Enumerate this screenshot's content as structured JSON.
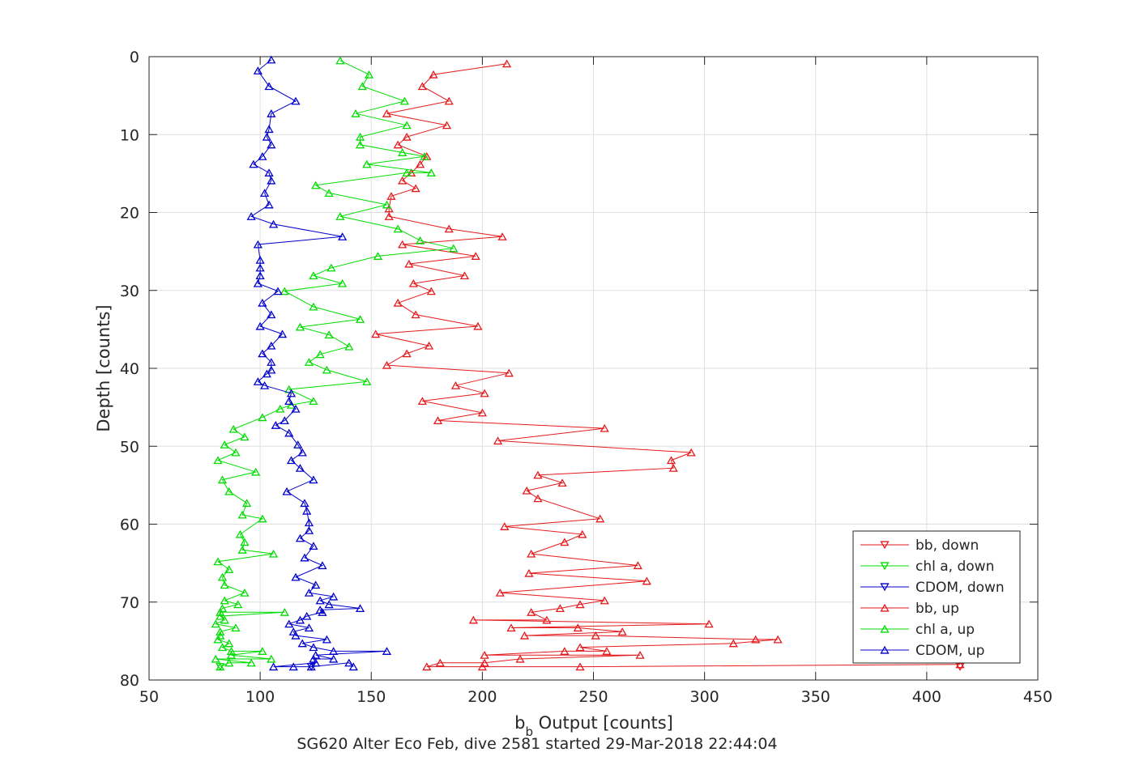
{
  "chart_data": {
    "type": "line",
    "title": "SG620 Alter Eco Feb, dive 2581 started 29-Mar-2018 22:44:04",
    "xlabel_main": "b",
    "xlabel_sub": "b",
    "xlabel_rest": " Output [counts]",
    "ylabel": "Depth [counts]",
    "xlim": [
      50,
      450
    ],
    "ylim": [
      0,
      80
    ],
    "y_reversed": true,
    "grid": true,
    "legend_position": "lower-right",
    "xticks": [
      "50",
      "100",
      "150",
      "200",
      "250",
      "300",
      "350",
      "400",
      "450"
    ],
    "yticks": [
      "0",
      "10",
      "20",
      "30",
      "40",
      "50",
      "60",
      "70",
      "80"
    ],
    "series": [
      {
        "name": "bb, down",
        "color": "#e41a1c",
        "marker": "triangle-down",
        "points": [
          [
            415,
            78.3
          ]
        ]
      },
      {
        "name": "chl a, down",
        "color": "#00dd00",
        "marker": "triangle-down",
        "points": [
          [
            82,
            78.3
          ]
        ]
      },
      {
        "name": "CDOM, down",
        "color": "#0000cc",
        "marker": "triangle-down",
        "points": [
          [
            123,
            78.3
          ]
        ]
      },
      {
        "name": "bb, up",
        "color": "#e41a1c",
        "marker": "triangle-up",
        "points": [
          [
            415,
            78.0
          ],
          [
            244,
            78.3
          ],
          [
            200,
            78.3
          ],
          [
            175,
            78.3
          ],
          [
            181,
            77.8
          ],
          [
            201,
            77.8
          ],
          [
            217,
            77.3
          ],
          [
            271,
            76.8
          ],
          [
            201,
            76.8
          ],
          [
            237,
            76.3
          ],
          [
            256,
            76.3
          ],
          [
            244,
            75.8
          ],
          [
            313,
            75.3
          ],
          [
            333,
            74.8
          ],
          [
            323,
            74.8
          ],
          [
            251,
            74.3
          ],
          [
            219,
            74.3
          ],
          [
            263,
            73.8
          ],
          [
            243,
            73.3
          ],
          [
            213,
            73.3
          ],
          [
            302,
            72.8
          ],
          [
            196,
            72.3
          ],
          [
            229,
            72.3
          ],
          [
            222,
            71.3
          ],
          [
            235,
            70.8
          ],
          [
            244,
            70.3
          ],
          [
            255,
            69.8
          ],
          [
            208,
            68.8
          ],
          [
            274,
            67.3
          ],
          [
            221,
            66.3
          ],
          [
            270,
            65.3
          ],
          [
            222,
            63.8
          ],
          [
            237,
            62.3
          ],
          [
            245,
            61.3
          ],
          [
            210,
            60.3
          ],
          [
            253,
            59.3
          ],
          [
            225,
            56.7
          ],
          [
            220,
            55.7
          ],
          [
            236,
            54.7
          ],
          [
            225,
            53.7
          ],
          [
            286,
            52.8
          ],
          [
            285,
            51.8
          ],
          [
            294,
            50.8
          ],
          [
            207,
            49.3
          ],
          [
            255,
            47.7
          ],
          [
            180,
            46.7
          ],
          [
            200,
            45.7
          ],
          [
            173,
            44.2
          ],
          [
            201,
            43.2
          ],
          [
            188,
            42.2
          ],
          [
            212,
            40.6
          ],
          [
            157,
            39.6
          ],
          [
            166,
            38.1
          ],
          [
            176,
            37.1
          ],
          [
            152,
            35.6
          ],
          [
            198,
            34.6
          ],
          [
            170,
            33.1
          ],
          [
            162,
            31.6
          ],
          [
            177,
            30.1
          ],
          [
            169,
            29.1
          ],
          [
            192,
            28.1
          ],
          [
            167,
            26.6
          ],
          [
            197,
            25.6
          ],
          [
            164,
            24.1
          ],
          [
            209,
            23.1
          ],
          [
            185,
            22.1
          ],
          [
            158,
            20.5
          ],
          [
            158,
            19.5
          ],
          [
            159,
            17.9
          ],
          [
            170,
            16.9
          ],
          [
            164,
            15.9
          ],
          [
            168,
            14.9
          ],
          [
            172,
            13.8
          ],
          [
            175,
            12.8
          ],
          [
            162,
            11.3
          ],
          [
            166,
            10.3
          ],
          [
            184,
            8.8
          ],
          [
            157,
            7.3
          ],
          [
            185,
            5.7
          ],
          [
            173,
            3.8
          ],
          [
            178,
            2.3
          ],
          [
            211,
            0.9
          ]
        ]
      },
      {
        "name": "chl a, up",
        "color": "#00dd00",
        "marker": "triangle-up",
        "points": [
          [
            82,
            78.3
          ],
          [
            86,
            77.8
          ],
          [
            96,
            77.8
          ],
          [
            80,
            77.3
          ],
          [
            105,
            77.3
          ],
          [
            87,
            76.8
          ],
          [
            101,
            76.3
          ],
          [
            87,
            76.3
          ],
          [
            83,
            75.8
          ],
          [
            86,
            75.3
          ],
          [
            81,
            74.8
          ],
          [
            82,
            74.3
          ],
          [
            82,
            73.8
          ],
          [
            89,
            73.3
          ],
          [
            80,
            72.8
          ],
          [
            84,
            72.3
          ],
          [
            82,
            71.8
          ],
          [
            111,
            71.3
          ],
          [
            82,
            71.3
          ],
          [
            83,
            70.8
          ],
          [
            90,
            70.3
          ],
          [
            84,
            69.8
          ],
          [
            93,
            68.8
          ],
          [
            84,
            67.8
          ],
          [
            83,
            66.8
          ],
          [
            86,
            65.8
          ],
          [
            81,
            64.8
          ],
          [
            106,
            63.8
          ],
          [
            92,
            63.3
          ],
          [
            93,
            62.3
          ],
          [
            91,
            61.3
          ],
          [
            101,
            59.3
          ],
          [
            92,
            58.8
          ],
          [
            94,
            57.3
          ],
          [
            86,
            55.8
          ],
          [
            83,
            54.3
          ],
          [
            98,
            53.3
          ],
          [
            81,
            51.8
          ],
          [
            89,
            50.8
          ],
          [
            84,
            49.8
          ],
          [
            93,
            48.8
          ],
          [
            88,
            47.8
          ],
          [
            101,
            46.3
          ],
          [
            109,
            45.2
          ],
          [
            114,
            44.7
          ],
          [
            124,
            44.2
          ],
          [
            113,
            42.7
          ],
          [
            148,
            41.7
          ],
          [
            130,
            40.2
          ],
          [
            122,
            39.2
          ],
          [
            127,
            38.2
          ],
          [
            140,
            37.2
          ],
          [
            131,
            35.7
          ],
          [
            118,
            34.7
          ],
          [
            145,
            33.7
          ],
          [
            124,
            32.1
          ],
          [
            111,
            30.1
          ],
          [
            137,
            29.1
          ],
          [
            124,
            28.1
          ],
          [
            132,
            27.1
          ],
          [
            153,
            25.6
          ],
          [
            187,
            24.6
          ],
          [
            172,
            23.6
          ],
          [
            162,
            22.1
          ],
          [
            136,
            20.5
          ],
          [
            157,
            19.0
          ],
          [
            131,
            17.5
          ],
          [
            125,
            16.5
          ],
          [
            166,
            14.9
          ],
          [
            177,
            14.9
          ],
          [
            148,
            13.8
          ],
          [
            174,
            12.8
          ],
          [
            164,
            12.3
          ],
          [
            145,
            11.3
          ],
          [
            145,
            10.3
          ],
          [
            166,
            8.8
          ],
          [
            143,
            7.3
          ],
          [
            165,
            5.7
          ],
          [
            146,
            3.8
          ],
          [
            149,
            2.3
          ],
          [
            136,
            0.5
          ]
        ]
      },
      {
        "name": "CDOM, up",
        "color": "#0000cc",
        "marker": "triangle-up",
        "points": [
          [
            142,
            78.3
          ],
          [
            140,
            77.8
          ],
          [
            123,
            78.3
          ],
          [
            115,
            78.3
          ],
          [
            106,
            78.3
          ],
          [
            125,
            77.8
          ],
          [
            124,
            77.3
          ],
          [
            133,
            77.3
          ],
          [
            125,
            76.8
          ],
          [
            157,
            76.3
          ],
          [
            133,
            76.3
          ],
          [
            124,
            75.8
          ],
          [
            119,
            75.3
          ],
          [
            130,
            74.8
          ],
          [
            116,
            74.3
          ],
          [
            115,
            73.8
          ],
          [
            122,
            73.3
          ],
          [
            113,
            72.8
          ],
          [
            118,
            72.3
          ],
          [
            121,
            71.8
          ],
          [
            128,
            71.3
          ],
          [
            127,
            71.0
          ],
          [
            145,
            70.8
          ],
          [
            131,
            70.3
          ],
          [
            127,
            69.8
          ],
          [
            133,
            69.3
          ],
          [
            122,
            68.8
          ],
          [
            125,
            67.8
          ],
          [
            116,
            66.8
          ],
          [
            128,
            65.3
          ],
          [
            120,
            64.3
          ],
          [
            124,
            62.8
          ],
          [
            118,
            61.8
          ],
          [
            122,
            60.8
          ],
          [
            122,
            59.8
          ],
          [
            121,
            58.3
          ],
          [
            120,
            57.3
          ],
          [
            112,
            55.8
          ],
          [
            124,
            54.3
          ],
          [
            118,
            52.8
          ],
          [
            114,
            51.8
          ],
          [
            119,
            50.8
          ],
          [
            117,
            49.8
          ],
          [
            113,
            48.3
          ],
          [
            107,
            47.3
          ],
          [
            111,
            46.7
          ],
          [
            116,
            45.2
          ],
          [
            113,
            44.2
          ],
          [
            114,
            43.2
          ],
          [
            102,
            42.2
          ],
          [
            99,
            41.7
          ],
          [
            103,
            40.7
          ],
          [
            105,
            40.2
          ],
          [
            105,
            39.2
          ],
          [
            101,
            38.1
          ],
          [
            105,
            37.1
          ],
          [
            110,
            35.6
          ],
          [
            100,
            34.6
          ],
          [
            105,
            33.1
          ],
          [
            101,
            31.6
          ],
          [
            108,
            30.1
          ],
          [
            99,
            29.1
          ],
          [
            100,
            28.1
          ],
          [
            100,
            27.1
          ],
          [
            100,
            26.1
          ],
          [
            99,
            24.1
          ],
          [
            137,
            23.1
          ],
          [
            106,
            21.5
          ],
          [
            96,
            20.5
          ],
          [
            104,
            19.0
          ],
          [
            102,
            17.5
          ],
          [
            105,
            15.9
          ],
          [
            104,
            14.9
          ],
          [
            97,
            13.8
          ],
          [
            101,
            12.8
          ],
          [
            105,
            11.3
          ],
          [
            103,
            10.3
          ],
          [
            104,
            9.3
          ],
          [
            105,
            7.3
          ],
          [
            116,
            5.7
          ],
          [
            104,
            3.8
          ],
          [
            99,
            1.8
          ],
          [
            105,
            0.4
          ]
        ]
      }
    ]
  }
}
